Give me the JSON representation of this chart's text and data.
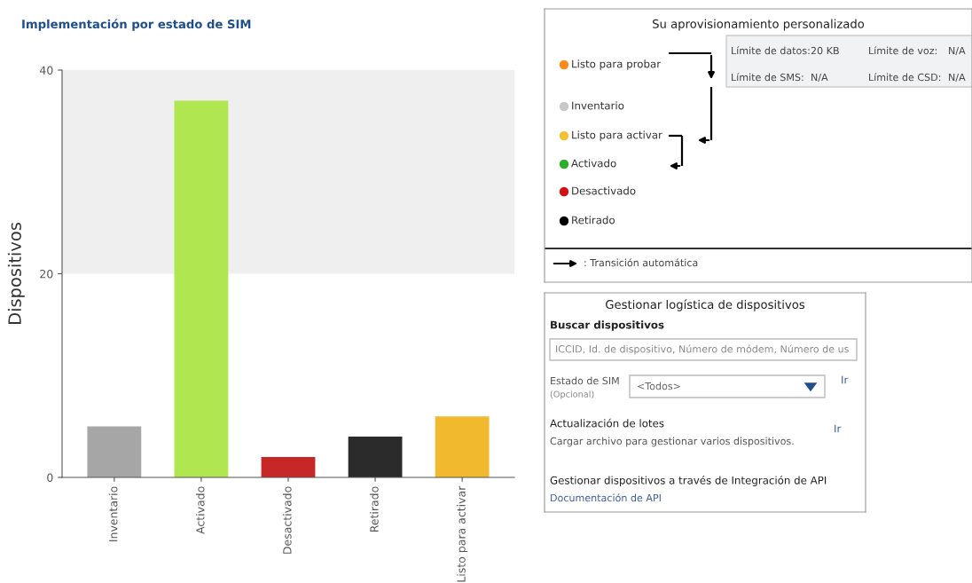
{
  "chart_data": [
    {
      "type": "bar",
      "title": "Implementación por estado de SIM",
      "ylabel": "Dispositivos",
      "categories": [
        "Inventario",
        "Activado",
        "Desactivado",
        "Retirado",
        "Listo para activar"
      ],
      "values": [
        5,
        37,
        2,
        4,
        6
      ],
      "colors": [
        "#a6a6a6",
        "#b0e650",
        "#c62828",
        "#2b2b2b",
        "#f0b92e"
      ],
      "ylim": [
        0,
        40
      ],
      "yticks": [
        0,
        20,
        40
      ],
      "bands": [
        {
          "axis": "y",
          "from": 20,
          "to": 40,
          "color": "#efefef"
        }
      ],
      "grid": false
    },
    {
      "type": "other",
      "title": "Su aprovisionamiento personalizado",
      "categories": [
        "Listo para probar",
        "Inventario",
        "Listo para activar",
        "Activado",
        "Desactivado",
        "Retirado"
      ],
      "colors": [
        "#ff8c1a",
        "#c8c8c8",
        "#f5c030",
        "#2ab02a",
        "#d41010",
        "#000000"
      ],
      "annotations": [
        "Límite de datos:",
        "20 KB",
        "Límite de voz:",
        "N/A",
        "Límite de SMS:",
        "N/A",
        "Límite de CSD:",
        "N/A",
        ": Transición automática"
      ]
    },
    {
      "type": "other",
      "title": "Gestionar logística de dispositivos",
      "annotations": [
        "Buscar dispositivos",
        "ICCID, Id. de dispositivo, Número de módem, Número de us",
        "Estado de SIM",
        "(Opcional)",
        "<Todos>",
        "Ir",
        "Actualización de lotes",
        "Ir",
        "Cargar archivo para gestionar varios dispositivos.",
        "Gestionar dispositivos a través de Integración de API",
        "Documentación de API"
      ]
    }
  ]
}
